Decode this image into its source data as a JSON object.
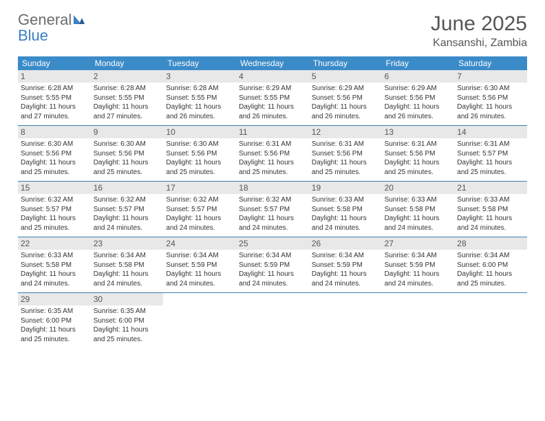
{
  "logo": {
    "part1": "General",
    "part2": "Blue"
  },
  "title": "June 2025",
  "location": "Kansanshi, Zambia",
  "colors": {
    "header_bg": "#3b8bc9",
    "header_text": "#ffffff",
    "daynum_bg": "#e8e8e8",
    "border": "#3b7fb0",
    "title_color": "#555555",
    "body_text": "#333333",
    "logo_gray": "#6b6b6b",
    "logo_blue": "#3b7fc4"
  },
  "weekdays": [
    "Sunday",
    "Monday",
    "Tuesday",
    "Wednesday",
    "Thursday",
    "Friday",
    "Saturday"
  ],
  "weeks": [
    [
      {
        "n": "1",
        "sr": "Sunrise: 6:28 AM",
        "ss": "Sunset: 5:55 PM",
        "d1": "Daylight: 11 hours",
        "d2": "and 27 minutes."
      },
      {
        "n": "2",
        "sr": "Sunrise: 6:28 AM",
        "ss": "Sunset: 5:55 PM",
        "d1": "Daylight: 11 hours",
        "d2": "and 27 minutes."
      },
      {
        "n": "3",
        "sr": "Sunrise: 6:28 AM",
        "ss": "Sunset: 5:55 PM",
        "d1": "Daylight: 11 hours",
        "d2": "and 26 minutes."
      },
      {
        "n": "4",
        "sr": "Sunrise: 6:29 AM",
        "ss": "Sunset: 5:55 PM",
        "d1": "Daylight: 11 hours",
        "d2": "and 26 minutes."
      },
      {
        "n": "5",
        "sr": "Sunrise: 6:29 AM",
        "ss": "Sunset: 5:56 PM",
        "d1": "Daylight: 11 hours",
        "d2": "and 26 minutes."
      },
      {
        "n": "6",
        "sr": "Sunrise: 6:29 AM",
        "ss": "Sunset: 5:56 PM",
        "d1": "Daylight: 11 hours",
        "d2": "and 26 minutes."
      },
      {
        "n": "7",
        "sr": "Sunrise: 6:30 AM",
        "ss": "Sunset: 5:56 PM",
        "d1": "Daylight: 11 hours",
        "d2": "and 26 minutes."
      }
    ],
    [
      {
        "n": "8",
        "sr": "Sunrise: 6:30 AM",
        "ss": "Sunset: 5:56 PM",
        "d1": "Daylight: 11 hours",
        "d2": "and 25 minutes."
      },
      {
        "n": "9",
        "sr": "Sunrise: 6:30 AM",
        "ss": "Sunset: 5:56 PM",
        "d1": "Daylight: 11 hours",
        "d2": "and 25 minutes."
      },
      {
        "n": "10",
        "sr": "Sunrise: 6:30 AM",
        "ss": "Sunset: 5:56 PM",
        "d1": "Daylight: 11 hours",
        "d2": "and 25 minutes."
      },
      {
        "n": "11",
        "sr": "Sunrise: 6:31 AM",
        "ss": "Sunset: 5:56 PM",
        "d1": "Daylight: 11 hours",
        "d2": "and 25 minutes."
      },
      {
        "n": "12",
        "sr": "Sunrise: 6:31 AM",
        "ss": "Sunset: 5:56 PM",
        "d1": "Daylight: 11 hours",
        "d2": "and 25 minutes."
      },
      {
        "n": "13",
        "sr": "Sunrise: 6:31 AM",
        "ss": "Sunset: 5:56 PM",
        "d1": "Daylight: 11 hours",
        "d2": "and 25 minutes."
      },
      {
        "n": "14",
        "sr": "Sunrise: 6:31 AM",
        "ss": "Sunset: 5:57 PM",
        "d1": "Daylight: 11 hours",
        "d2": "and 25 minutes."
      }
    ],
    [
      {
        "n": "15",
        "sr": "Sunrise: 6:32 AM",
        "ss": "Sunset: 5:57 PM",
        "d1": "Daylight: 11 hours",
        "d2": "and 25 minutes."
      },
      {
        "n": "16",
        "sr": "Sunrise: 6:32 AM",
        "ss": "Sunset: 5:57 PM",
        "d1": "Daylight: 11 hours",
        "d2": "and 24 minutes."
      },
      {
        "n": "17",
        "sr": "Sunrise: 6:32 AM",
        "ss": "Sunset: 5:57 PM",
        "d1": "Daylight: 11 hours",
        "d2": "and 24 minutes."
      },
      {
        "n": "18",
        "sr": "Sunrise: 6:32 AM",
        "ss": "Sunset: 5:57 PM",
        "d1": "Daylight: 11 hours",
        "d2": "and 24 minutes."
      },
      {
        "n": "19",
        "sr": "Sunrise: 6:33 AM",
        "ss": "Sunset: 5:58 PM",
        "d1": "Daylight: 11 hours",
        "d2": "and 24 minutes."
      },
      {
        "n": "20",
        "sr": "Sunrise: 6:33 AM",
        "ss": "Sunset: 5:58 PM",
        "d1": "Daylight: 11 hours",
        "d2": "and 24 minutes."
      },
      {
        "n": "21",
        "sr": "Sunrise: 6:33 AM",
        "ss": "Sunset: 5:58 PM",
        "d1": "Daylight: 11 hours",
        "d2": "and 24 minutes."
      }
    ],
    [
      {
        "n": "22",
        "sr": "Sunrise: 6:33 AM",
        "ss": "Sunset: 5:58 PM",
        "d1": "Daylight: 11 hours",
        "d2": "and 24 minutes."
      },
      {
        "n": "23",
        "sr": "Sunrise: 6:34 AM",
        "ss": "Sunset: 5:58 PM",
        "d1": "Daylight: 11 hours",
        "d2": "and 24 minutes."
      },
      {
        "n": "24",
        "sr": "Sunrise: 6:34 AM",
        "ss": "Sunset: 5:59 PM",
        "d1": "Daylight: 11 hours",
        "d2": "and 24 minutes."
      },
      {
        "n": "25",
        "sr": "Sunrise: 6:34 AM",
        "ss": "Sunset: 5:59 PM",
        "d1": "Daylight: 11 hours",
        "d2": "and 24 minutes."
      },
      {
        "n": "26",
        "sr": "Sunrise: 6:34 AM",
        "ss": "Sunset: 5:59 PM",
        "d1": "Daylight: 11 hours",
        "d2": "and 24 minutes."
      },
      {
        "n": "27",
        "sr": "Sunrise: 6:34 AM",
        "ss": "Sunset: 5:59 PM",
        "d1": "Daylight: 11 hours",
        "d2": "and 24 minutes."
      },
      {
        "n": "28",
        "sr": "Sunrise: 6:34 AM",
        "ss": "Sunset: 6:00 PM",
        "d1": "Daylight: 11 hours",
        "d2": "and 25 minutes."
      }
    ],
    [
      {
        "n": "29",
        "sr": "Sunrise: 6:35 AM",
        "ss": "Sunset: 6:00 PM",
        "d1": "Daylight: 11 hours",
        "d2": "and 25 minutes."
      },
      {
        "n": "30",
        "sr": "Sunrise: 6:35 AM",
        "ss": "Sunset: 6:00 PM",
        "d1": "Daylight: 11 hours",
        "d2": "and 25 minutes."
      },
      null,
      null,
      null,
      null,
      null
    ]
  ]
}
